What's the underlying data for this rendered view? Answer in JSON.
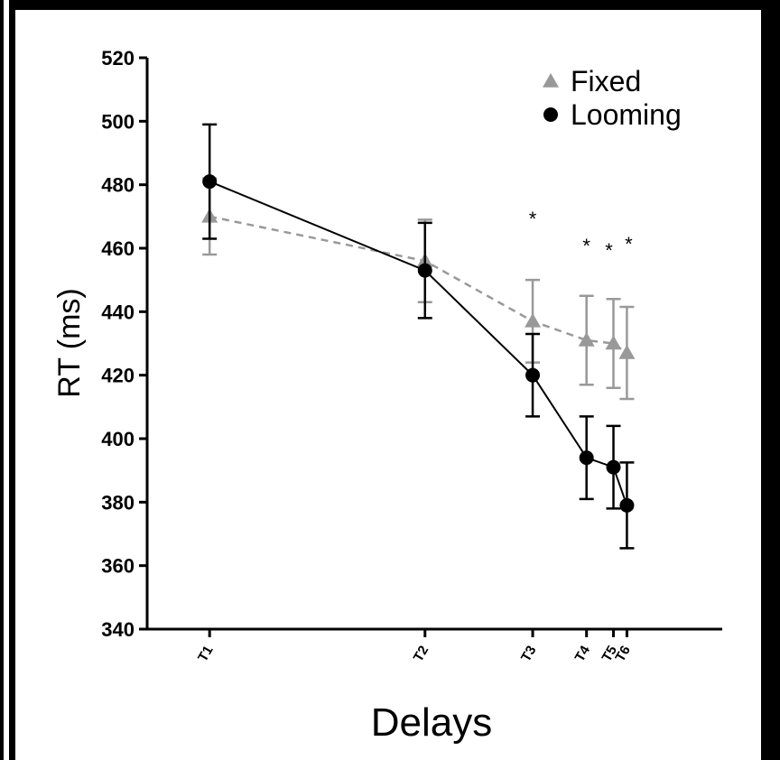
{
  "chart_data": {
    "type": "line",
    "xlabel": "Delays",
    "ylabel": "RT (ms)",
    "ylim": [
      340,
      520
    ],
    "yticks": [
      340,
      360,
      380,
      400,
      420,
      440,
      460,
      480,
      500,
      520
    ],
    "categories": [
      "T1",
      "T2",
      "T3",
      "T4",
      "T5",
      "T6"
    ],
    "x": [
      0,
      1,
      1.5,
      1.75,
      1.875,
      1.9375
    ],
    "xlim": [
      -0.29,
      2.38
    ],
    "series": [
      {
        "name": "Fixed",
        "marker": "triangle",
        "color": "#999999",
        "line_style": "dashed",
        "values": [
          470,
          456,
          437,
          431,
          430,
          427
        ],
        "error": [
          12,
          13,
          13,
          14,
          14,
          14.5
        ]
      },
      {
        "name": "Looming",
        "marker": "circle",
        "color": "#000000",
        "line_style": "solid",
        "values": [
          481,
          453,
          420,
          394,
          391,
          379
        ],
        "error": [
          18,
          15,
          13,
          13,
          13,
          13.5
        ]
      }
    ],
    "significance": [
      "",
      "",
      "*",
      "*",
      "*",
      "*"
    ],
    "legend_position": "top-right",
    "grid": false
  }
}
